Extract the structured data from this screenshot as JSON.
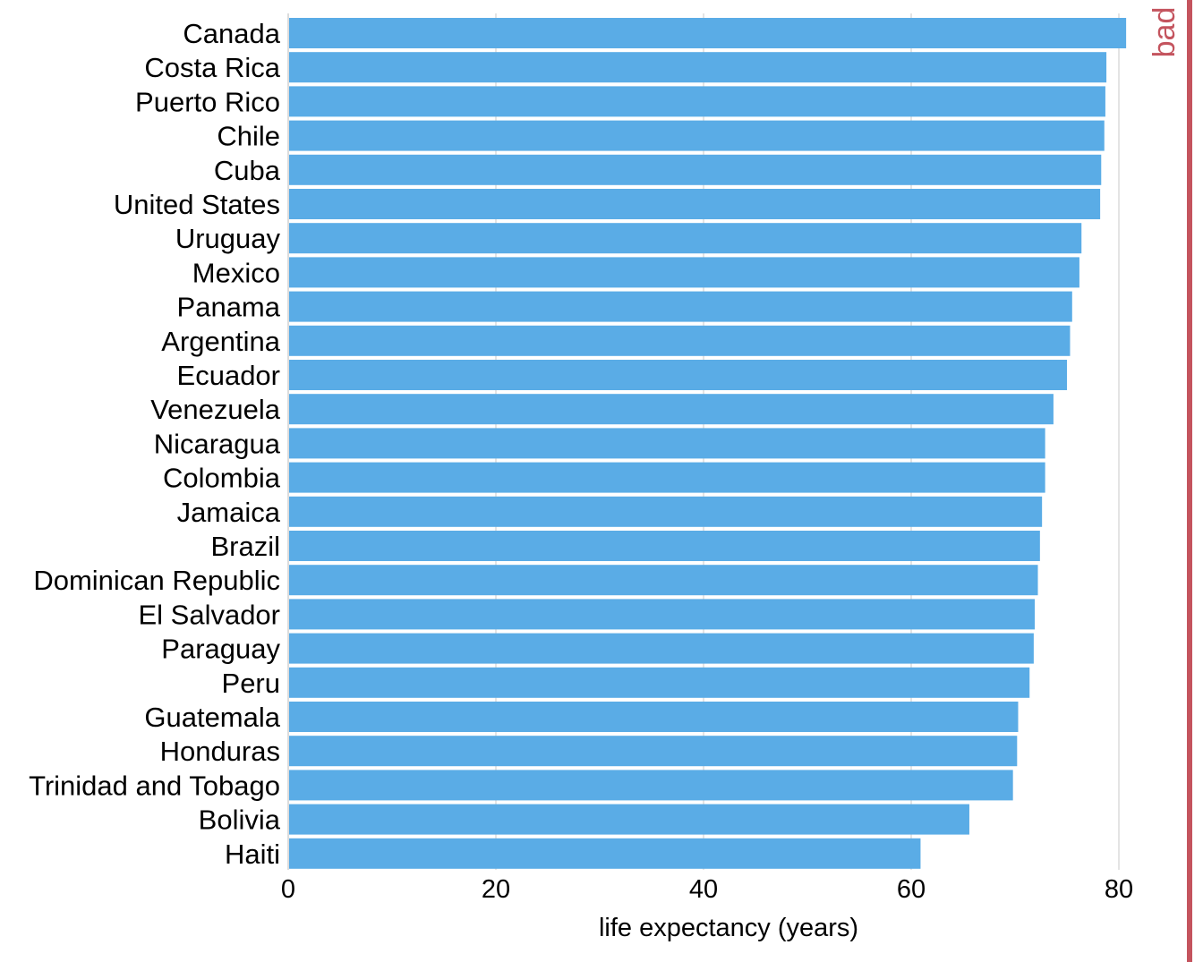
{
  "chart_data": {
    "type": "bar",
    "orientation": "horizontal",
    "categories": [
      "Canada",
      "Costa Rica",
      "Puerto Rico",
      "Chile",
      "Cuba",
      "United States",
      "Uruguay",
      "Mexico",
      "Panama",
      "Argentina",
      "Ecuador",
      "Venezuela",
      "Nicaragua",
      "Colombia",
      "Jamaica",
      "Brazil",
      "Dominican Republic",
      "El Salvador",
      "Paraguay",
      "Peru",
      "Guatemala",
      "Honduras",
      "Trinidad and Tobago",
      "Bolivia",
      "Haiti"
    ],
    "values": [
      80.7,
      78.8,
      78.7,
      78.6,
      78.3,
      78.2,
      76.4,
      76.2,
      75.5,
      75.3,
      75.0,
      73.7,
      72.9,
      72.9,
      72.6,
      72.4,
      72.2,
      71.9,
      71.8,
      71.4,
      70.3,
      70.2,
      69.8,
      65.6,
      60.9
    ],
    "xlabel": "life expectancy (years)",
    "ylabel": "",
    "xlim": [
      0,
      84
    ],
    "xticks": [
      0,
      20,
      40,
      60,
      80
    ],
    "grid": "vertical",
    "side_label": "bad",
    "colors": {
      "bar": "#5aace6",
      "side": "#c4545e",
      "grid": "#dcdcdc"
    }
  }
}
